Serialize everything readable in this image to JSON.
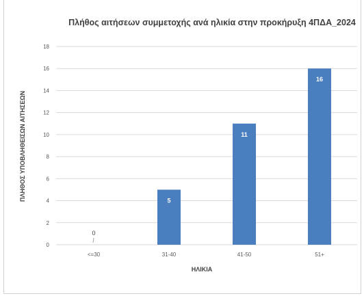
{
  "chart_data": {
    "type": "bar",
    "title": "Πλήθος αιτήσεων συμμετοχής ανά ηλικία στην προκήρυξη 4ΠΔΑ_2024",
    "xlabel": "ΗΛΙΚΙΑ",
    "ylabel": "ΠΛΗΘΟΣ ΥΠΟΒΛΗΘΕΙΣΩΝ ΑΙΤΗΣΕΩΝ",
    "categories": [
      "<=30",
      "31-40",
      "41-50",
      "51+"
    ],
    "values": [
      0,
      5,
      11,
      16
    ],
    "ylim": [
      0,
      18
    ],
    "yticks": [
      0,
      2,
      4,
      6,
      8,
      10,
      12,
      14,
      16,
      18
    ],
    "grid": true,
    "bar_color": "#4a7ebf",
    "grid_color": "#d9d9d9"
  }
}
